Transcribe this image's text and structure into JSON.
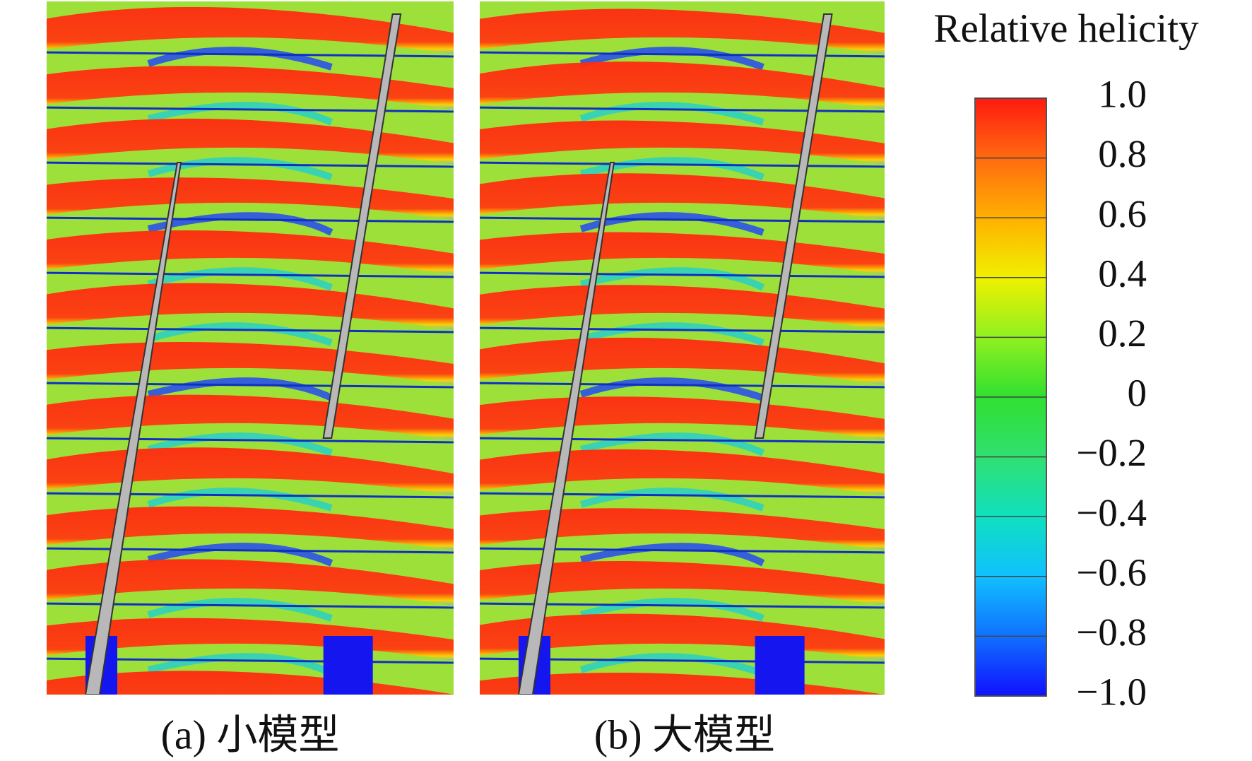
{
  "colorbar": {
    "title": "Relative helicity",
    "range": [
      -1,
      1
    ],
    "ticks": [
      {
        "value": 1,
        "label": "1.0"
      },
      {
        "value": 0.8,
        "label": "0.8"
      },
      {
        "value": 0.6,
        "label": "0.6"
      },
      {
        "value": 0.4,
        "label": "0.4"
      },
      {
        "value": 0.2,
        "label": "0.2"
      },
      0,
      {
        "value": -0.2,
        "label": "−0.2"
      },
      {
        "value": -0.4,
        "label": "−0.4"
      },
      {
        "value": -0.6,
        "label": "−0.6"
      },
      {
        "value": -0.8,
        "label": "−0.8"
      },
      {
        "value": -1,
        "label": "−1.0"
      }
    ]
  },
  "panels": [
    {
      "caption": "(a) 小模型"
    },
    {
      "caption": "(b) 大模型"
    }
  ]
}
